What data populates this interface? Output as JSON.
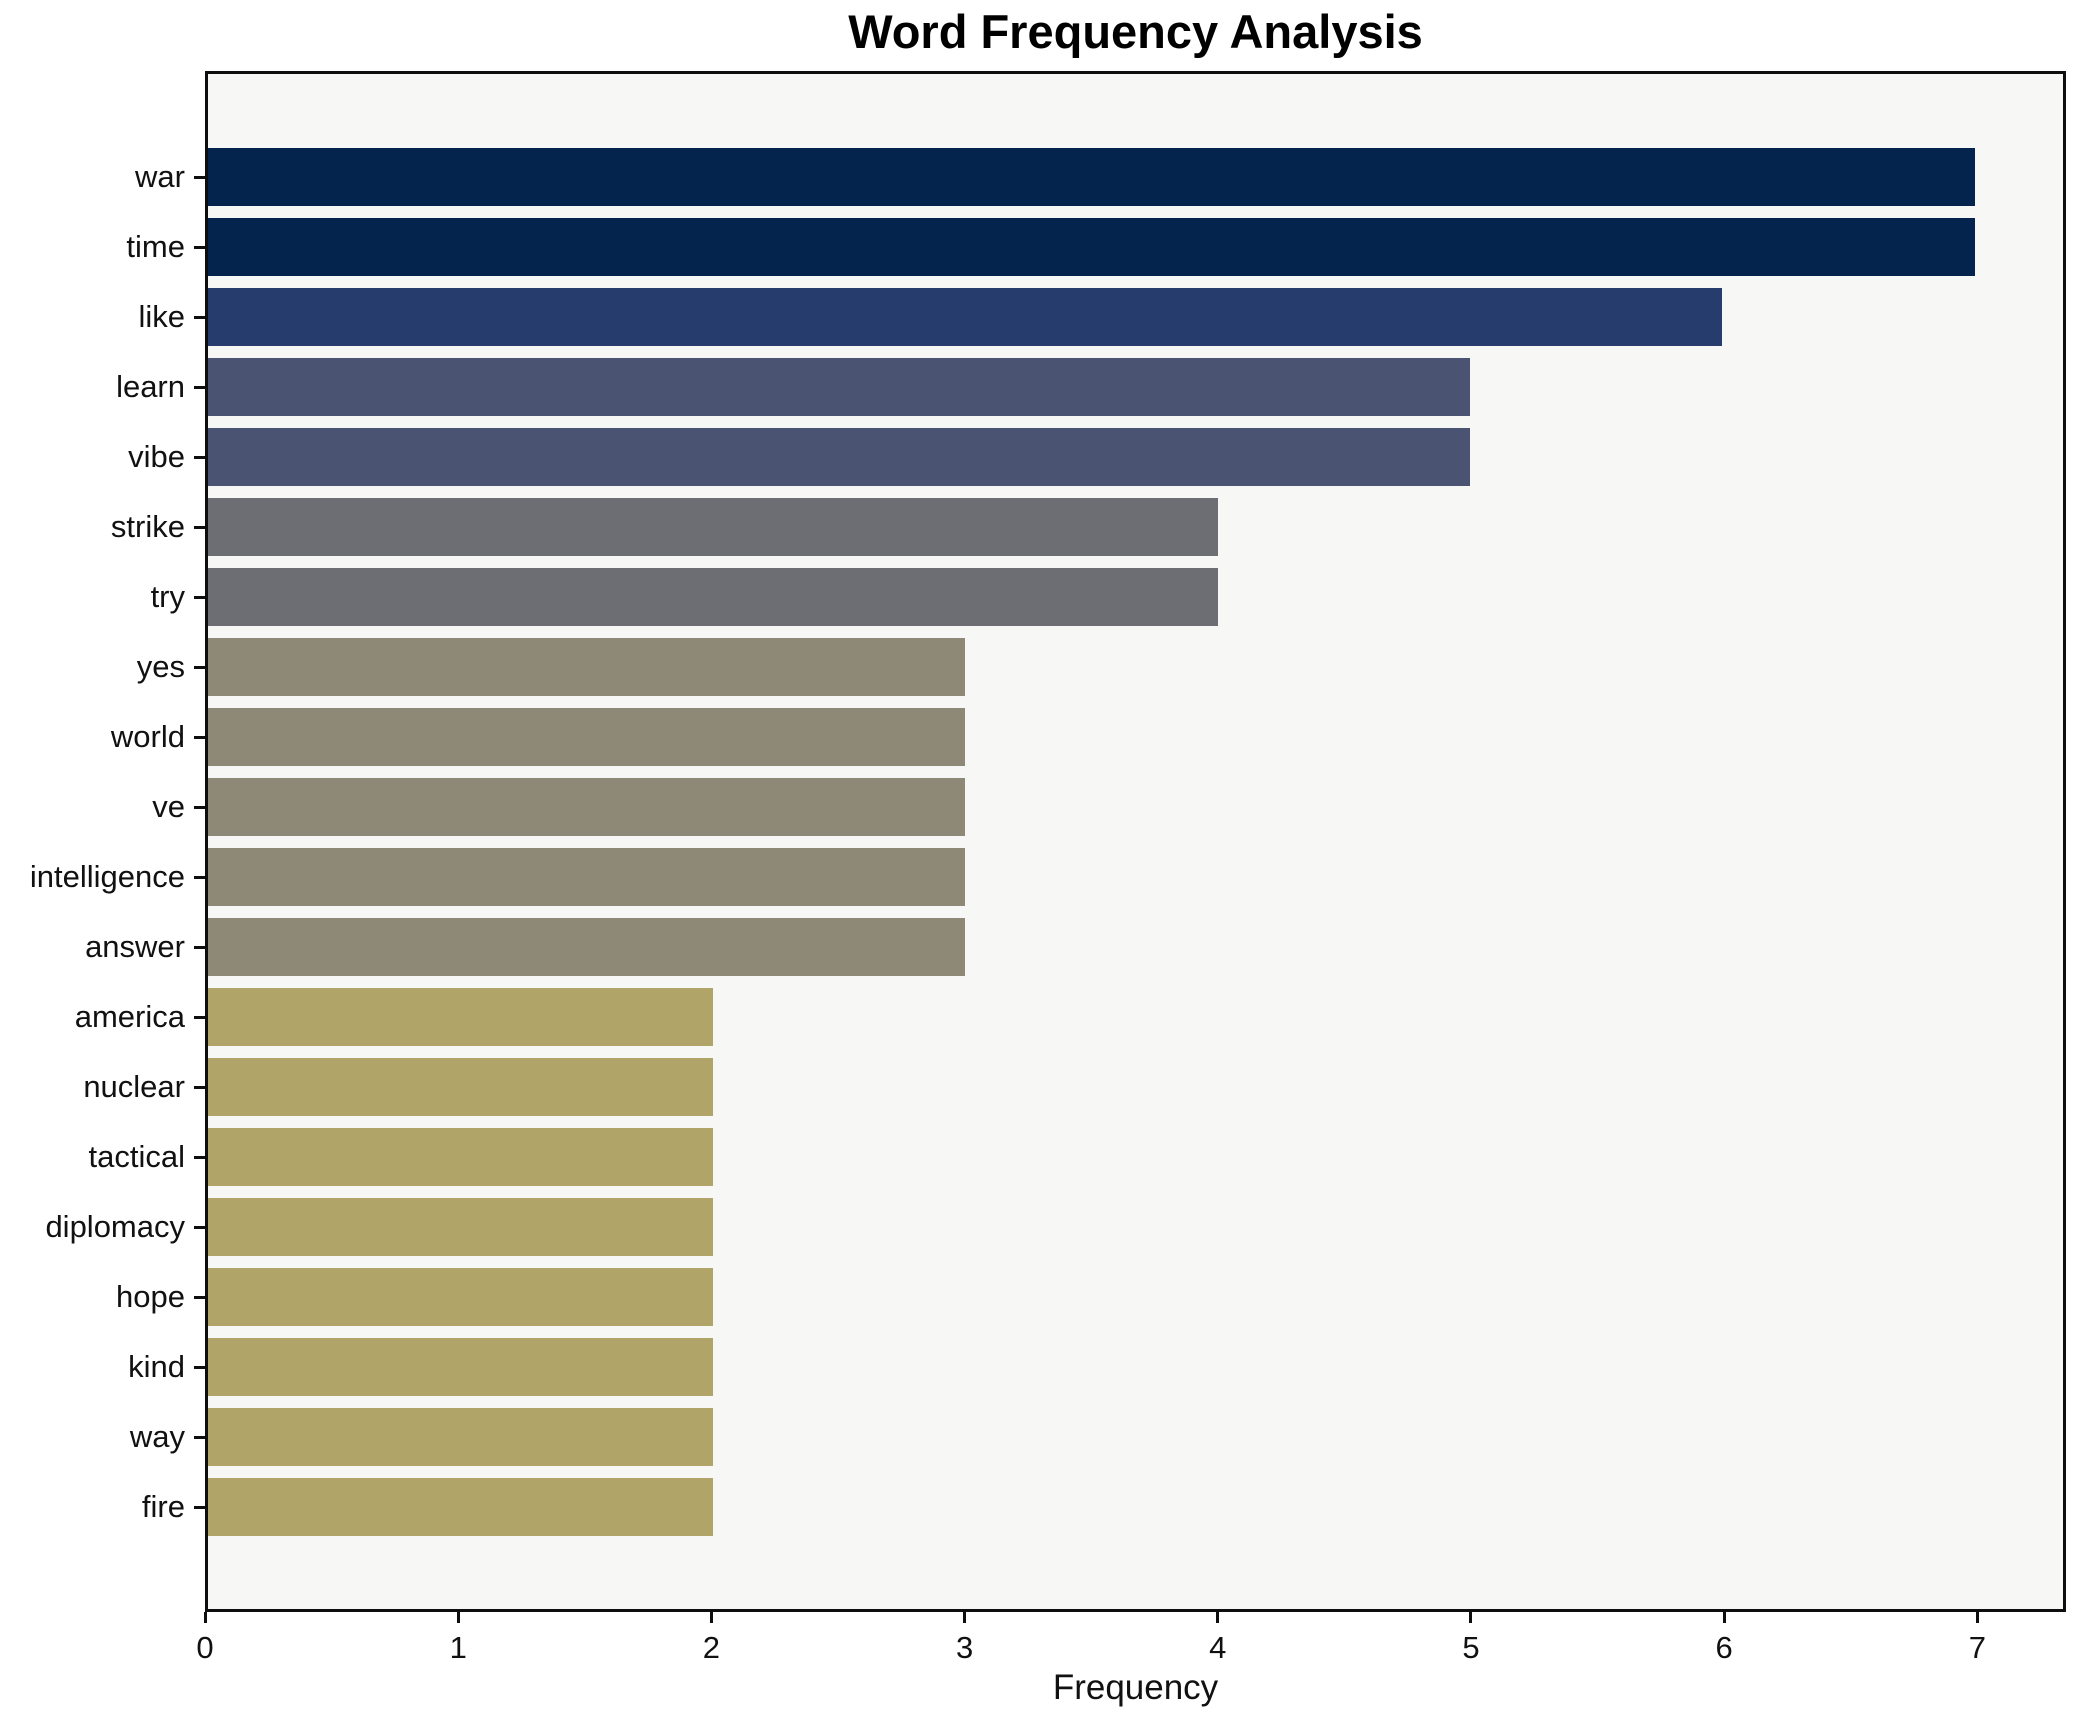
{
  "chart_data": {
    "type": "bar",
    "orientation": "horizontal",
    "title": "Word Frequency Analysis",
    "xlabel": "Frequency",
    "ylabel": "",
    "categories": [
      "war",
      "time",
      "like",
      "learn",
      "vibe",
      "strike",
      "try",
      "yes",
      "world",
      "ve",
      "intelligence",
      "answer",
      "america",
      "nuclear",
      "tactical",
      "diplomacy",
      "hope",
      "kind",
      "way",
      "fire"
    ],
    "values": [
      7,
      7,
      6,
      5,
      5,
      4,
      4,
      3,
      3,
      3,
      3,
      3,
      2,
      2,
      2,
      2,
      2,
      2,
      2,
      2
    ],
    "bar_colors": [
      "#04234d",
      "#04234d",
      "#253c6c",
      "#4b5372",
      "#4b5372",
      "#6d6e73",
      "#6d6e73",
      "#8e8876",
      "#8e8876",
      "#8e8876",
      "#8e8876",
      "#8e8876",
      "#b0a468",
      "#b0a468",
      "#b0a468",
      "#b0a468",
      "#b0a468",
      "#b0a468",
      "#b0a468",
      "#b0a468"
    ],
    "xlim": [
      0,
      7.35
    ],
    "xticks": [
      0,
      1,
      2,
      3,
      4,
      5,
      6,
      7
    ],
    "grid": false,
    "legend": "none",
    "plot_background": "#f7f7f5",
    "figure_background": "#ffffff",
    "axis_color": "#0e0e0e",
    "text_color": "#111111"
  }
}
